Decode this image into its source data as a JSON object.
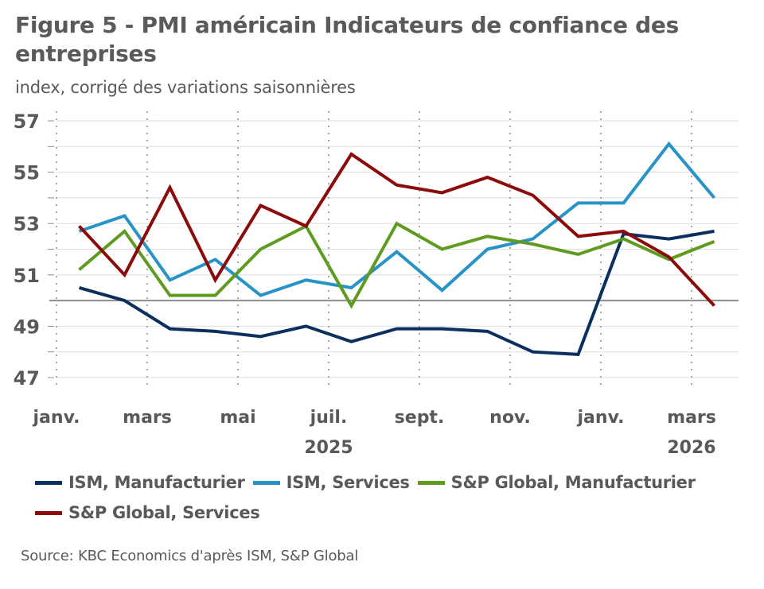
{
  "header": {
    "title": "Figure 5 - PMI américain Indicateurs de confiance des entreprises",
    "subtitle": "index, corrigé des variations saisonnières"
  },
  "source": "Source: KBC Economics d'après ISM, S&P Global",
  "chart_data": {
    "type": "line",
    "title": "Figure 5 - PMI américain Indicateurs de confiance des entreprises",
    "subtitle": "index, corrigé des variations saisonnières",
    "xlabel": "",
    "ylabel": "",
    "ylim": [
      47,
      57
    ],
    "yticks": [
      57,
      55,
      53,
      51,
      49,
      47
    ],
    "reference_line": 50,
    "grid": true,
    "legend_position": "bottom",
    "x": [
      "2025-01",
      "2025-02",
      "2025-03",
      "2025-04",
      "2025-05",
      "2025-06",
      "2025-07",
      "2025-08",
      "2025-09",
      "2025-10",
      "2025-11",
      "2025-12",
      "2026-01",
      "2026-02",
      "2026-03"
    ],
    "x_tick_labels": [
      {
        "month_index": 0,
        "label": "janv."
      },
      {
        "month_index": 2,
        "label": "mars"
      },
      {
        "month_index": 4,
        "label": "mai"
      },
      {
        "month_index": 6,
        "label": "juil."
      },
      {
        "month_index": 8,
        "label": "sept."
      },
      {
        "month_index": 10,
        "label": "nov."
      },
      {
        "month_index": 12,
        "label": "janv."
      },
      {
        "month_index": 14,
        "label": "mars"
      }
    ],
    "year_labels": [
      {
        "month_index": 6,
        "label": "2025"
      },
      {
        "month_index": 14,
        "label": "2026"
      }
    ],
    "series": [
      {
        "name": "ISM, Manufacturier",
        "color": "#0b2f5e",
        "values": [
          50.5,
          50.0,
          48.9,
          48.8,
          48.6,
          49.0,
          48.4,
          48.9,
          48.9,
          48.8,
          48.0,
          47.9,
          52.6,
          52.4,
          52.7
        ]
      },
      {
        "name": "ISM, Services",
        "color": "#2793c6",
        "values": [
          52.7,
          53.3,
          50.8,
          51.6,
          50.2,
          50.8,
          50.5,
          51.9,
          50.4,
          52.0,
          52.4,
          53.8,
          53.8,
          56.1,
          54.0
        ]
      },
      {
        "name": "S&P Global, Manufacturier",
        "color": "#5e9b1e",
        "values": [
          51.2,
          52.7,
          50.2,
          50.2,
          52.0,
          52.9,
          49.8,
          53.0,
          52.0,
          52.5,
          52.2,
          51.8,
          52.4,
          51.6,
          52.3
        ]
      },
      {
        "name": "S&P Global, Services",
        "color": "#8c0a0a",
        "values": [
          52.9,
          51.0,
          54.4,
          50.8,
          53.7,
          52.9,
          55.7,
          54.5,
          54.2,
          54.8,
          54.1,
          52.5,
          52.7,
          51.7,
          49.8
        ]
      }
    ]
  }
}
